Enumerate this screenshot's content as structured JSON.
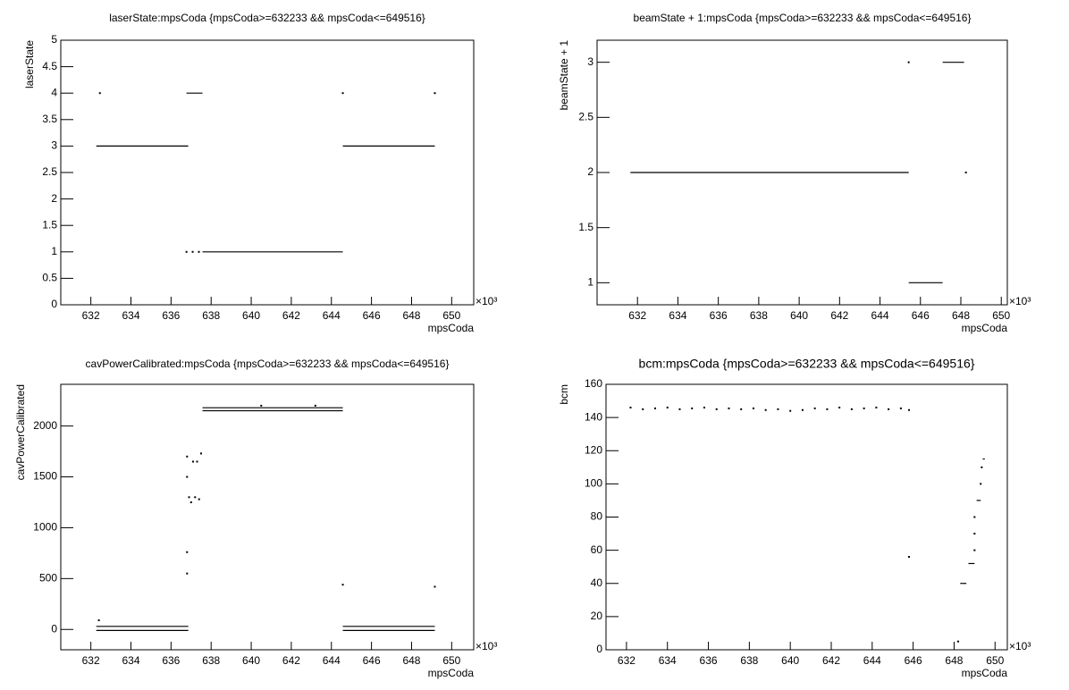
{
  "chart_data": [
    {
      "type": "scatter",
      "title": "laserState:mpsCoda {mpsCoda>=632233 && mpsCoda<=649516}",
      "x_label": "mpsCoda",
      "y_label": "laserState",
      "x_exponent": "×10³",
      "xlim": [
        630.5,
        651.1
      ],
      "xticks": [
        632,
        634,
        636,
        638,
        640,
        642,
        644,
        646,
        648,
        650
      ],
      "ylim": [
        0,
        5
      ],
      "yticks": [
        0,
        0.5,
        1,
        1.5,
        2,
        2.5,
        3,
        3.5,
        4,
        4.5,
        5
      ],
      "runs": [
        {
          "x": [
            632.27,
            636.86
          ],
          "y": 3
        },
        {
          "x": [
            636.77,
            637.57
          ],
          "y": 4
        },
        {
          "x": [
            637.57,
            644.57
          ],
          "y": 1
        },
        {
          "x": [
            644.57,
            649.16
          ],
          "y": 3
        }
      ],
      "points": {
        "x": [
          636.77,
          637.08,
          637.39,
          632.45,
          644.57,
          649.16
        ],
        "y": [
          1,
          1,
          1,
          4,
          4,
          4
        ]
      }
    },
    {
      "type": "scatter",
      "title": "beamState + 1:mpsCoda {mpsCoda>=632233 && mpsCoda<=649516}",
      "x_label": "mpsCoda",
      "y_label": "beamState + 1",
      "x_exponent": "×10³",
      "xlim": [
        630.0,
        650.3
      ],
      "xticks": [
        632,
        634,
        636,
        638,
        640,
        642,
        644,
        646,
        648,
        650
      ],
      "ylim": [
        0.8,
        3.2
      ],
      "yticks": [
        1,
        1.5,
        2,
        2.5,
        3
      ],
      "runs": [
        {
          "x": [
            631.65,
            645.42
          ],
          "y": 2
        },
        {
          "x": [
            645.42,
            647.1
          ],
          "y": 1
        },
        {
          "x": [
            647.1,
            648.16
          ],
          "y": 3
        }
      ],
      "points": {
        "x": [
          645.42,
          648.25
        ],
        "y": [
          3,
          2
        ]
      }
    },
    {
      "type": "scatter",
      "title": "cavPowerCalibrated:mpsCoda {mpsCoda>=632233 && mpsCoda<=649516}",
      "x_label": "mpsCoda",
      "y_label": "cavPowerCalibrated",
      "x_exponent": "×10³",
      "xlim": [
        630.5,
        651.1
      ],
      "xticks": [
        632,
        634,
        636,
        638,
        640,
        642,
        644,
        646,
        648,
        650
      ],
      "ylim": [
        -200,
        2410
      ],
      "yticks": [
        0,
        500,
        1000,
        1500,
        2000
      ],
      "runs": [
        {
          "x": [
            632.27,
            636.86
          ],
          "y": 30
        },
        {
          "x": [
            632.27,
            636.86
          ],
          "y": -10
        },
        {
          "x": [
            637.57,
            644.57
          ],
          "y": 2180
        },
        {
          "x": [
            637.57,
            644.57
          ],
          "y": 2150
        },
        {
          "x": [
            644.57,
            649.16
          ],
          "y": 30
        },
        {
          "x": [
            644.57,
            649.16
          ],
          "y": -10
        }
      ],
      "points": {
        "x": [
          632.4,
          636.8,
          636.8,
          644.57,
          649.16,
          636.8,
          636.8,
          636.9,
          637.0,
          637.1,
          637.2,
          637.3,
          637.4,
          637.5,
          640.5,
          643.2
        ],
        "y": [
          90,
          760,
          550,
          440,
          420,
          1700,
          1500,
          1300,
          1250,
          1650,
          1300,
          1650,
          1280,
          1730,
          2200,
          2200
        ]
      }
    },
    {
      "type": "scatter",
      "title": "bcm:mpsCoda {mpsCoda>=632233 && mpsCoda<=649516}",
      "x_label": "mpsCoda",
      "y_label": "bcm",
      "x_exponent": "×10³",
      "xlim": [
        631.0,
        650.6
      ],
      "xticks": [
        632,
        634,
        636,
        638,
        640,
        642,
        644,
        646,
        648,
        650
      ],
      "ylim": [
        0,
        160
      ],
      "yticks": [
        0,
        20,
        40,
        60,
        80,
        100,
        120,
        140,
        160
      ],
      "runs": [
        {
          "x": [
            648.3,
            648.6
          ],
          "y": 40
        },
        {
          "x": [
            648.7,
            649.0
          ],
          "y": 52
        },
        {
          "x": [
            649.1,
            649.3
          ],
          "y": 90
        },
        {
          "x": [
            649.4,
            649.5
          ],
          "y": 115
        }
      ],
      "points": {
        "x": [
          632.2,
          632.8,
          633.4,
          634.0,
          634.6,
          635.2,
          635.8,
          636.4,
          637.0,
          637.6,
          638.2,
          638.8,
          639.4,
          640.0,
          640.6,
          641.2,
          641.8,
          642.4,
          643.0,
          643.6,
          644.2,
          644.8,
          645.4,
          645.8,
          645.8,
          648.2,
          649.0,
          649.0,
          649.0,
          649.3,
          649.35
        ],
        "y": [
          146,
          145,
          145.5,
          146,
          145,
          145.5,
          146,
          145,
          145.5,
          145,
          145.5,
          144.5,
          145,
          144,
          144.5,
          145.5,
          145,
          146,
          145,
          145.5,
          146,
          145,
          145.5,
          144.5,
          56,
          5,
          60,
          70,
          80,
          100,
          110
        ]
      }
    }
  ]
}
